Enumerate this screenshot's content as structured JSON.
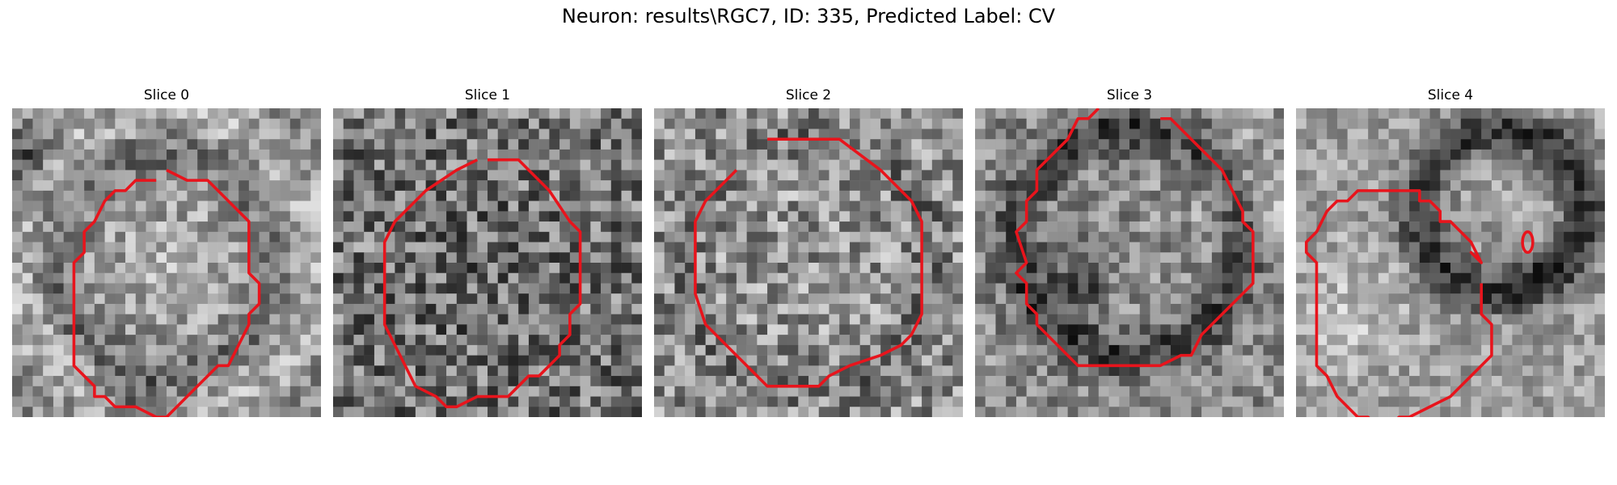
{
  "figure": {
    "title": "Neuron: results\\RGC7, ID: 335, Predicted Label: CV"
  },
  "slices": [
    {
      "label": "Slice 0"
    },
    {
      "label": "Slice 1"
    },
    {
      "label": "Slice 2"
    },
    {
      "label": "Slice 3"
    },
    {
      "label": "Slice 4"
    }
  ],
  "colors": {
    "contour": "#e8141c",
    "background": "#ffffff"
  },
  "colormap": "grayscale"
}
